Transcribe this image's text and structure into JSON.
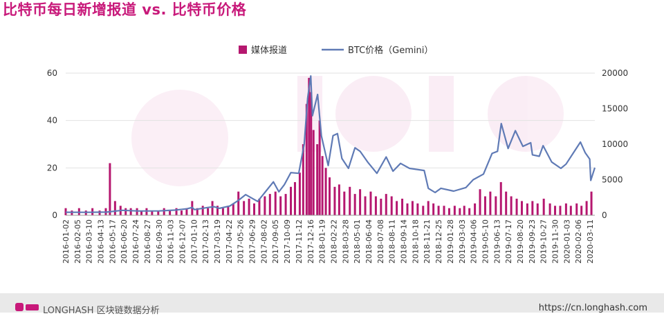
{
  "title": "比特币每日新增报道 vs. 比特币价格",
  "footer": {
    "brand": "LONGHASH 区块链数据分析",
    "url": "https://cn.longhash.com"
  },
  "colors": {
    "media": "#b5176f",
    "btc": "#5f7ab5",
    "grid": "#e2e2e2",
    "title": "#c8197a"
  },
  "chart_data": {
    "type": "bar+line",
    "legend_position": "top-center",
    "grid": true,
    "legend": [
      {
        "name": "媒体报道",
        "type": "bar"
      },
      {
        "name": "BTC价格（Gemini）",
        "type": "line"
      }
    ],
    "x_range": [
      "2016-01-02",
      "2020-03-25"
    ],
    "x_tick_labels": [
      "2016-01-02",
      "2016-02-05",
      "2016-03-10",
      "2016-04-13",
      "2016-05-17",
      "2016-06-20",
      "2016-07-24",
      "2016-08-27",
      "2016-09-30",
      "2016-11-03",
      "2016-12-07",
      "2017-01-10",
      "2017-02-13",
      "2017-03-19",
      "2017-04-22",
      "2017-05-26",
      "2017-06-29",
      "2017-08-02",
      "2017-09-05",
      "2017-10-09",
      "2017-11-12",
      "2017-12-16",
      "2018-01-19",
      "2018-02-22",
      "2018-03-28",
      "2018-05-01",
      "2018-06-04",
      "2018-07-08",
      "2018-08-11",
      "2018-09-14",
      "2018-10-18",
      "2018-11-21",
      "2018-12-25",
      "2019-01-28",
      "2019-03-03",
      "2019-04-06",
      "2019-05-10",
      "2019-06-13",
      "2019-07-17",
      "2019-08-20",
      "2019-09-23",
      "2019-10-27",
      "2019-11-30",
      "2020-01-03",
      "2020-02-06",
      "2020-03-11"
    ],
    "y_left": {
      "ticks": [
        "0",
        "20",
        "40",
        "60"
      ],
      "range": [
        0,
        60
      ]
    },
    "y_right": {
      "ticks": [
        "0",
        "5000",
        "10000",
        "15000",
        "20000"
      ],
      "range": [
        0,
        20000
      ]
    },
    "series": [
      {
        "name": "媒体报道",
        "type": "bar",
        "axis": "left",
        "points": [
          [
            "2016-01-02",
            3
          ],
          [
            "2016-01-20",
            2
          ],
          [
            "2016-02-10",
            3
          ],
          [
            "2016-03-01",
            2
          ],
          [
            "2016-03-20",
            3
          ],
          [
            "2016-04-10",
            2
          ],
          [
            "2016-04-28",
            3
          ],
          [
            "2016-05-10",
            22
          ],
          [
            "2016-05-25",
            6
          ],
          [
            "2016-06-10",
            4
          ],
          [
            "2016-06-25",
            3
          ],
          [
            "2016-07-10",
            3
          ],
          [
            "2016-07-28",
            3
          ],
          [
            "2016-08-10",
            2
          ],
          [
            "2016-08-25",
            3
          ],
          [
            "2016-09-10",
            2
          ],
          [
            "2016-09-28",
            2
          ],
          [
            "2016-10-15",
            3
          ],
          [
            "2016-11-01",
            2
          ],
          [
            "2016-11-20",
            3
          ],
          [
            "2016-12-05",
            2
          ],
          [
            "2016-12-20",
            3
          ],
          [
            "2017-01-05",
            6
          ],
          [
            "2017-01-20",
            3
          ],
          [
            "2017-02-05",
            4
          ],
          [
            "2017-02-20",
            3
          ],
          [
            "2017-03-05",
            6
          ],
          [
            "2017-03-20",
            4
          ],
          [
            "2017-04-05",
            3
          ],
          [
            "2017-04-20",
            4
          ],
          [
            "2017-05-05",
            5
          ],
          [
            "2017-05-20",
            10
          ],
          [
            "2017-06-05",
            6
          ],
          [
            "2017-06-20",
            7
          ],
          [
            "2017-07-05",
            5
          ],
          [
            "2017-07-20",
            7
          ],
          [
            "2017-08-05",
            8
          ],
          [
            "2017-08-20",
            9
          ],
          [
            "2017-09-05",
            10
          ],
          [
            "2017-09-20",
            8
          ],
          [
            "2017-10-05",
            9
          ],
          [
            "2017-10-20",
            12
          ],
          [
            "2017-11-01",
            14
          ],
          [
            "2017-11-15",
            18
          ],
          [
            "2017-11-25",
            30
          ],
          [
            "2017-12-05",
            47
          ],
          [
            "2017-12-12",
            58
          ],
          [
            "2017-12-18",
            52
          ],
          [
            "2017-12-25",
            36
          ],
          [
            "2018-01-05",
            30
          ],
          [
            "2018-01-12",
            40
          ],
          [
            "2018-01-20",
            25
          ],
          [
            "2018-01-30",
            20
          ],
          [
            "2018-02-10",
            16
          ],
          [
            "2018-02-25",
            12
          ],
          [
            "2018-03-10",
            13
          ],
          [
            "2018-03-25",
            10
          ],
          [
            "2018-04-10",
            12
          ],
          [
            "2018-04-25",
            9
          ],
          [
            "2018-05-10",
            11
          ],
          [
            "2018-05-25",
            8
          ],
          [
            "2018-06-10",
            10
          ],
          [
            "2018-06-25",
            8
          ],
          [
            "2018-07-10",
            7
          ],
          [
            "2018-07-25",
            9
          ],
          [
            "2018-08-10",
            8
          ],
          [
            "2018-08-25",
            6
          ],
          [
            "2018-09-10",
            7
          ],
          [
            "2018-09-25",
            5
          ],
          [
            "2018-10-10",
            6
          ],
          [
            "2018-10-25",
            5
          ],
          [
            "2018-11-10",
            4
          ],
          [
            "2018-11-25",
            6
          ],
          [
            "2018-12-10",
            5
          ],
          [
            "2018-12-25",
            4
          ],
          [
            "2019-01-10",
            4
          ],
          [
            "2019-01-25",
            3
          ],
          [
            "2019-02-10",
            4
          ],
          [
            "2019-02-25",
            3
          ],
          [
            "2019-03-10",
            4
          ],
          [
            "2019-03-25",
            3
          ],
          [
            "2019-04-10",
            5
          ],
          [
            "2019-04-25",
            11
          ],
          [
            "2019-05-10",
            8
          ],
          [
            "2019-05-25",
            10
          ],
          [
            "2019-06-10",
            8
          ],
          [
            "2019-06-25",
            14
          ],
          [
            "2019-07-10",
            10
          ],
          [
            "2019-07-25",
            8
          ],
          [
            "2019-08-10",
            7
          ],
          [
            "2019-08-25",
            6
          ],
          [
            "2019-09-10",
            5
          ],
          [
            "2019-09-25",
            6
          ],
          [
            "2019-10-10",
            5
          ],
          [
            "2019-10-28",
            7
          ],
          [
            "2019-11-15",
            5
          ],
          [
            "2019-11-30",
            4
          ],
          [
            "2019-12-15",
            4
          ],
          [
            "2020-01-01",
            5
          ],
          [
            "2020-01-15",
            4
          ],
          [
            "2020-02-01",
            5
          ],
          [
            "2020-02-15",
            4
          ],
          [
            "2020-03-01",
            6
          ],
          [
            "2020-03-15",
            10
          ]
        ]
      },
      {
        "name": "BTC价格（Gemini）",
        "type": "line",
        "axis": "right",
        "points": [
          [
            "2016-01-02",
            430
          ],
          [
            "2016-03-01",
            420
          ],
          [
            "2016-05-01",
            450
          ],
          [
            "2016-06-15",
            700
          ],
          [
            "2016-08-01",
            600
          ],
          [
            "2016-10-01",
            610
          ],
          [
            "2016-11-15",
            730
          ],
          [
            "2016-12-20",
            900
          ],
          [
            "2017-01-05",
            1100
          ],
          [
            "2017-01-12",
            800
          ],
          [
            "2017-02-20",
            1100
          ],
          [
            "2017-03-10",
            1200
          ],
          [
            "2017-03-25",
            970
          ],
          [
            "2017-04-25",
            1300
          ],
          [
            "2017-05-20",
            2100
          ],
          [
            "2017-06-10",
            2900
          ],
          [
            "2017-07-15",
            1950
          ],
          [
            "2017-08-05",
            3200
          ],
          [
            "2017-08-30",
            4700
          ],
          [
            "2017-09-15",
            3300
          ],
          [
            "2017-10-01",
            4300
          ],
          [
            "2017-10-20",
            6000
          ],
          [
            "2017-11-12",
            5900
          ],
          [
            "2017-11-28",
            10000
          ],
          [
            "2017-12-08",
            16500
          ],
          [
            "2017-12-17",
            19600
          ],
          [
            "2017-12-22",
            14000
          ],
          [
            "2018-01-06",
            17000
          ],
          [
            "2018-01-17",
            11200
          ],
          [
            "2018-02-06",
            7000
          ],
          [
            "2018-02-20",
            11200
          ],
          [
            "2018-03-05",
            11500
          ],
          [
            "2018-03-18",
            8000
          ],
          [
            "2018-04-06",
            6600
          ],
          [
            "2018-04-25",
            9500
          ],
          [
            "2018-05-10",
            9000
          ],
          [
            "2018-06-01",
            7500
          ],
          [
            "2018-06-28",
            5900
          ],
          [
            "2018-07-25",
            8200
          ],
          [
            "2018-08-14",
            6200
          ],
          [
            "2018-09-05",
            7300
          ],
          [
            "2018-10-01",
            6600
          ],
          [
            "2018-11-13",
            6300
          ],
          [
            "2018-11-25",
            3800
          ],
          [
            "2018-12-15",
            3200
          ],
          [
            "2019-01-01",
            3800
          ],
          [
            "2019-02-07",
            3400
          ],
          [
            "2019-03-15",
            3900
          ],
          [
            "2019-04-05",
            5000
          ],
          [
            "2019-05-05",
            5800
          ],
          [
            "2019-05-30",
            8700
          ],
          [
            "2019-06-15",
            9000
          ],
          [
            "2019-06-26",
            12900
          ],
          [
            "2019-07-16",
            9400
          ],
          [
            "2019-08-06",
            11900
          ],
          [
            "2019-08-28",
            9700
          ],
          [
            "2019-09-20",
            10200
          ],
          [
            "2019-09-25",
            8500
          ],
          [
            "2019-10-15",
            8300
          ],
          [
            "2019-10-26",
            9800
          ],
          [
            "2019-11-20",
            7500
          ],
          [
            "2019-12-17",
            6600
          ],
          [
            "2020-01-01",
            7200
          ],
          [
            "2020-01-20",
            8600
          ],
          [
            "2020-02-12",
            10300
          ],
          [
            "2020-02-26",
            8800
          ],
          [
            "2020-03-10",
            7900
          ],
          [
            "2020-03-13",
            4900
          ],
          [
            "2020-03-25",
            6700
          ]
        ]
      }
    ]
  }
}
